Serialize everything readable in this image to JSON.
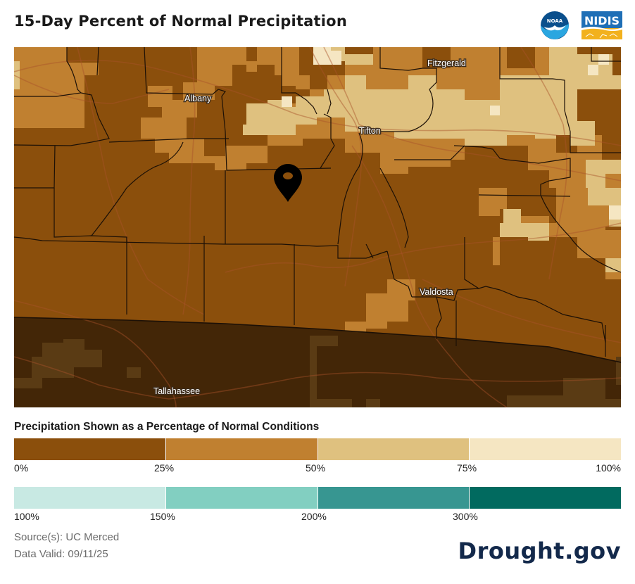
{
  "title": "15-Day Percent of Normal Precipitation",
  "logos": {
    "noaa": "NOAA",
    "nidis": "NIDIS"
  },
  "map": {
    "cities": [
      "Albany",
      "Fitzgerald",
      "Tifton",
      "Valdosta",
      "Tallahassee"
    ],
    "marker_icon": "map-pin-icon"
  },
  "legend": {
    "title": "Precipitation Shown as a Percentage of Normal Conditions",
    "dry_colors": [
      "#8b4f0c",
      "#c08030",
      "#dfc17f",
      "#f5e6c2"
    ],
    "dry_ticks": [
      "0%",
      "25%",
      "50%",
      "75%",
      "100%"
    ],
    "wet_colors": [
      "#c8e9e3",
      "#82cfc1",
      "#379691",
      "#016a5f"
    ],
    "wet_ticks": [
      "100%",
      "150%",
      "200%",
      "300%"
    ]
  },
  "footer": {
    "source": "Source(s): UC Merced",
    "valid": "Data Valid: 09/11/25",
    "brand": "Drought.gov"
  },
  "colors": {
    "dark_brown": "#8b4f0c",
    "mid_brown": "#c08030",
    "tan": "#dfc17f",
    "cream": "#f5e6c2",
    "florida_dark": "#432607",
    "florida_mid": "#5a3b14",
    "brand_navy": "#13294b"
  }
}
